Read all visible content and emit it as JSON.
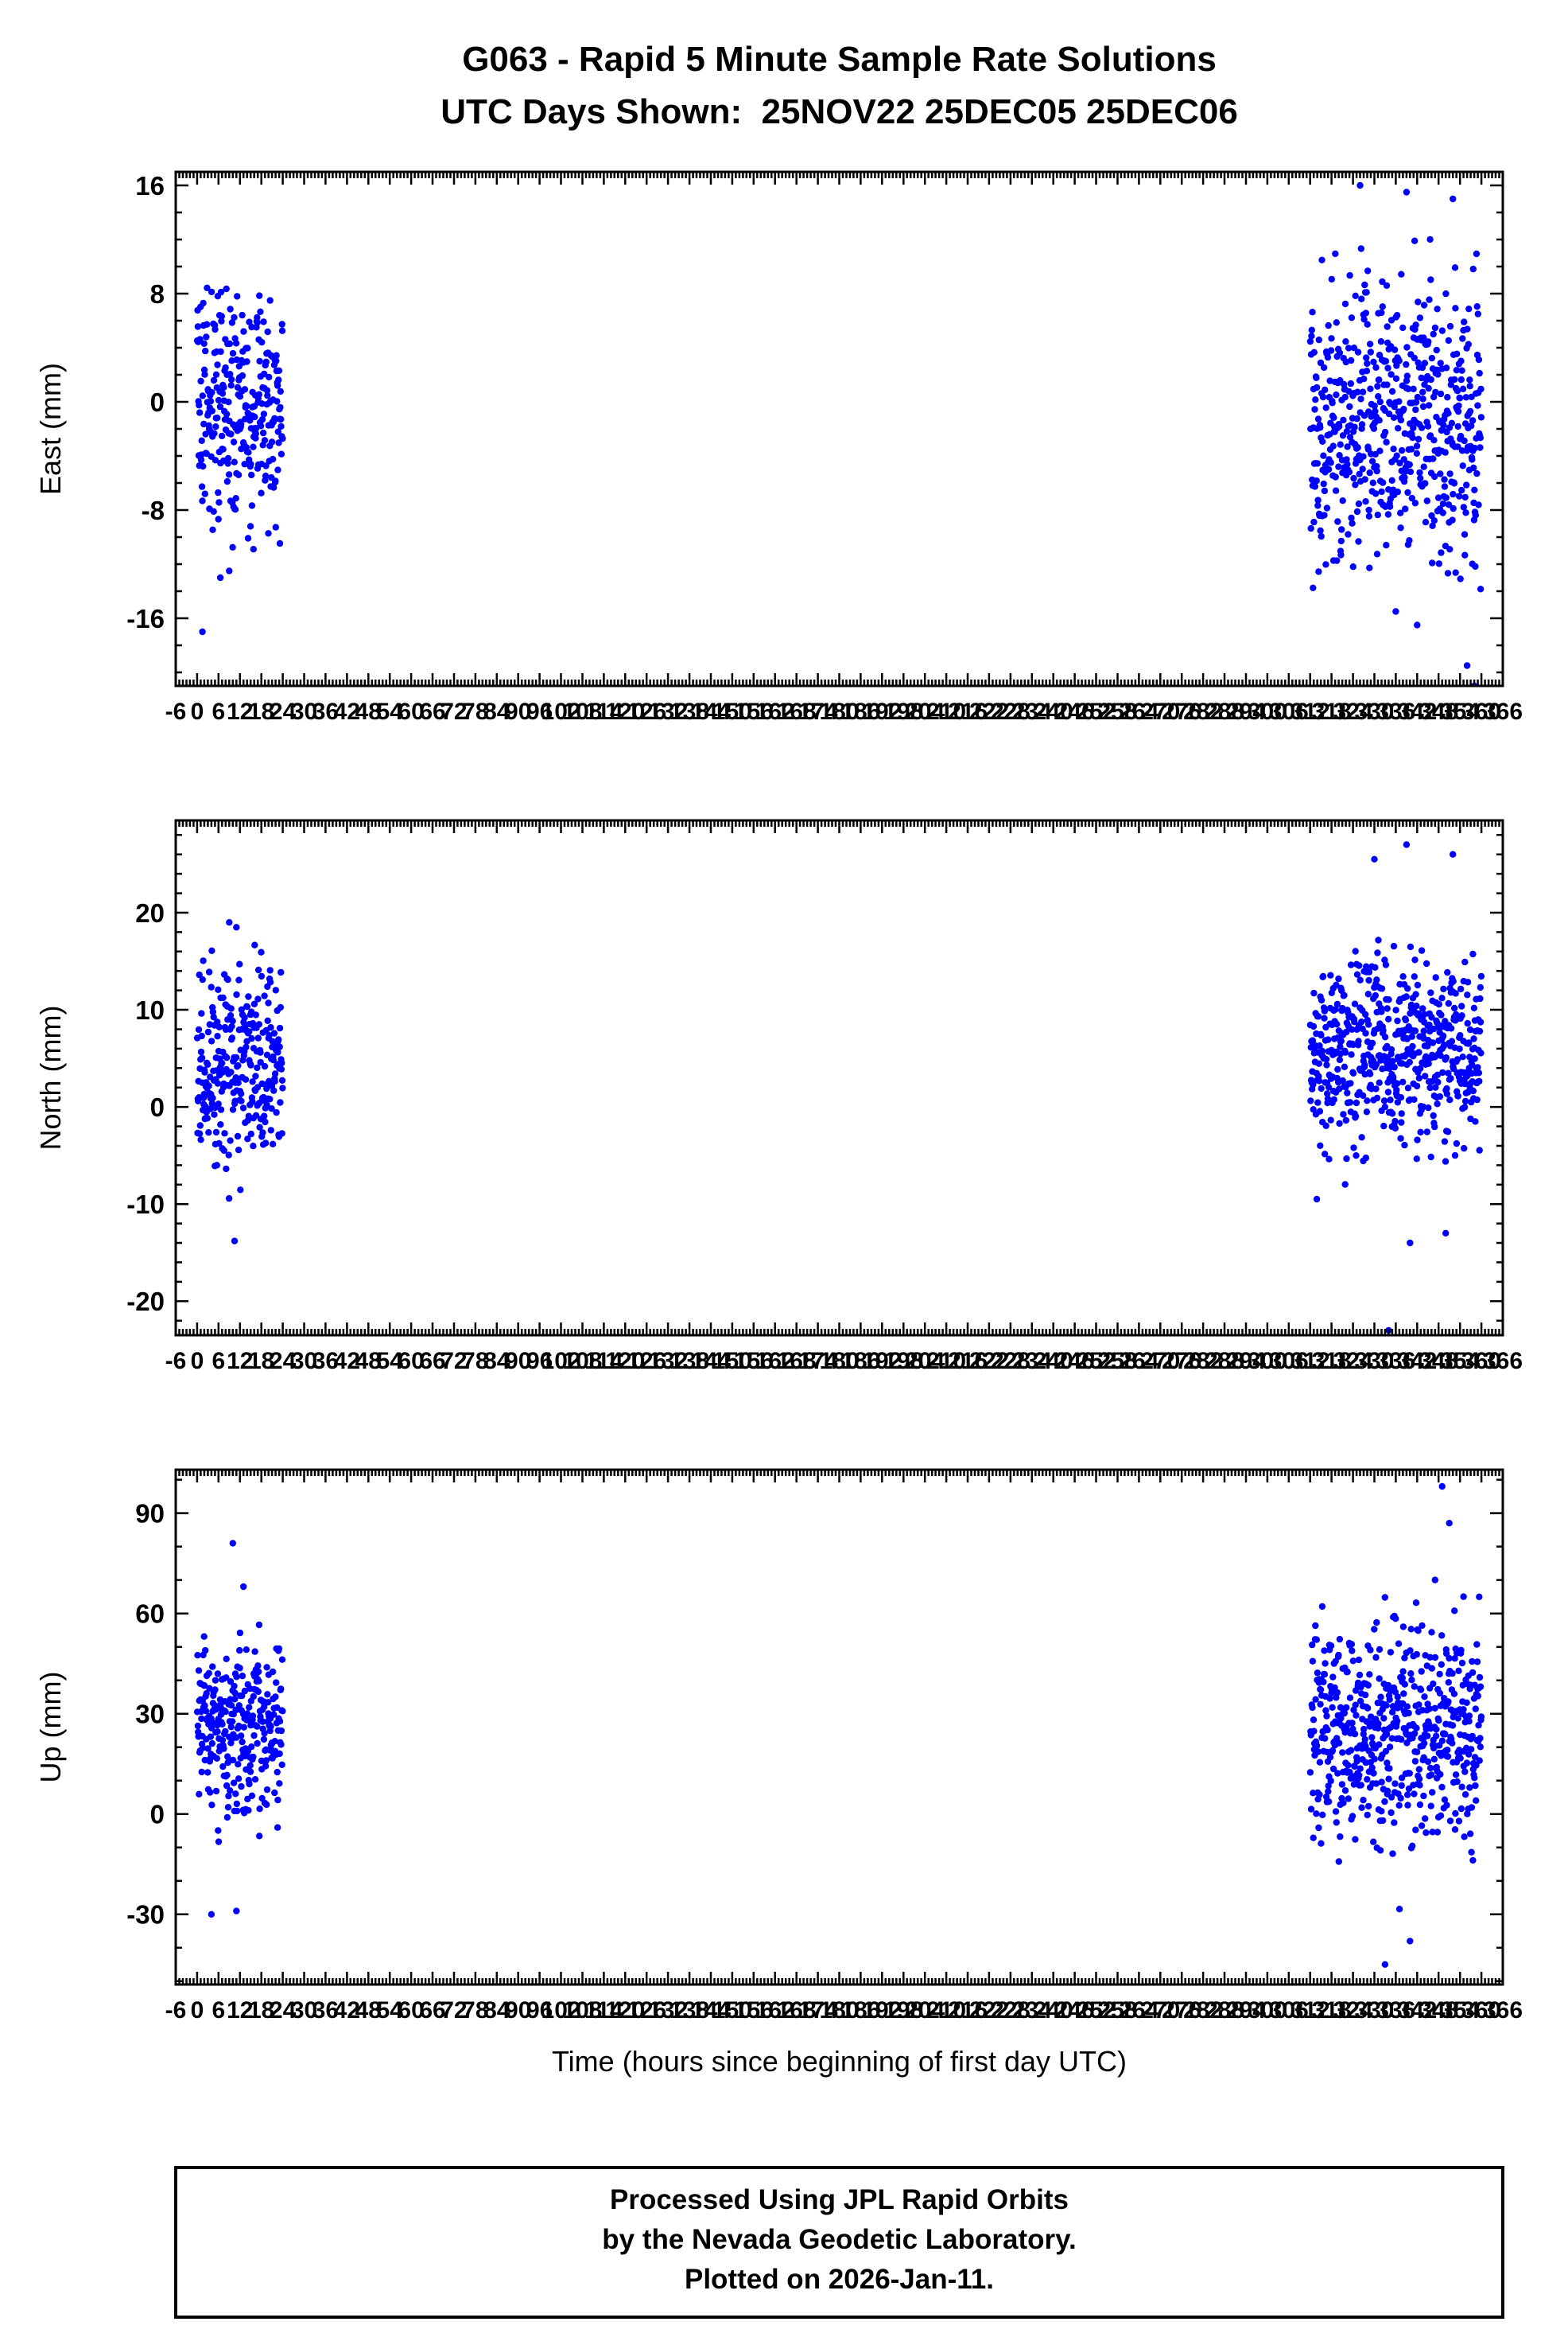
{
  "title": {
    "line1": "G063 - Rapid 5 Minute Sample Rate Solutions",
    "line2": "UTC Days Shown:  25NOV22 25DEC05 25DEC06"
  },
  "xaxis": {
    "label": "Time (hours since beginning of first day UTC)",
    "min": -6,
    "max": 366,
    "tick_step": 6,
    "minor_step": 1
  },
  "style": {
    "point_color": "#0000ff",
    "axis_color": "#000000"
  },
  "footer": {
    "line1": "Processed Using JPL Rapid Orbits",
    "line2": "by the Nevada Geodetic Laboratory.",
    "line3": "Plotted on 2026-Jan-11."
  },
  "chart_data": [
    {
      "type": "scatter",
      "ylabel": "East (mm)",
      "ylim": [
        -21,
        17
      ],
      "yticks": [
        16,
        8,
        0,
        -8,
        -16
      ],
      "y_minor_step": 2,
      "legend": "none",
      "grid": false,
      "clusters": [
        {
          "label": "25NOV22",
          "x_range": [
            0,
            24
          ],
          "count": 288,
          "y_mean": -0.5,
          "y_std": 4.2,
          "y_min": -13,
          "y_max": 8.5,
          "outliers": [
            [
              1.5,
              -17
            ],
            [
              6.5,
              -13
            ],
            [
              9,
              -12.5
            ]
          ]
        },
        {
          "label": "25DEC05 25DEC06",
          "x_range": [
            312,
            360
          ],
          "count": 576,
          "y_mean": -1.5,
          "y_std": 5.2,
          "y_min": -14,
          "y_max": 14.5,
          "outliers": [
            [
              326,
              16
            ],
            [
              339,
              15.5
            ],
            [
              352,
              15
            ],
            [
              342,
              -16.5
            ],
            [
              336,
              -15.5
            ],
            [
              356,
              -19.5
            ],
            [
              358,
              -21
            ]
          ]
        }
      ],
      "seed": 11
    },
    {
      "type": "scatter",
      "ylabel": "North (mm)",
      "ylim": [
        -23.5,
        29.5
      ],
      "yticks": [
        20,
        10,
        0,
        -10,
        -20
      ],
      "y_minor_step": 2,
      "legend": "none",
      "grid": false,
      "clusters": [
        {
          "label": "25NOV22",
          "x_range": [
            0,
            24
          ],
          "count": 288,
          "y_mean": 4,
          "y_std": 5,
          "y_min": -11.5,
          "y_max": 17,
          "outliers": [
            [
              9,
              19
            ],
            [
              11,
              18.5
            ],
            [
              10.5,
              -13.8
            ]
          ]
        },
        {
          "label": "25DEC05 25DEC06",
          "x_range": [
            312,
            360
          ],
          "count": 576,
          "y_mean": 5.5,
          "y_std": 5,
          "y_min": -10,
          "y_max": 18,
          "outliers": [
            [
              339,
              27
            ],
            [
              330,
              25.5
            ],
            [
              352,
              26
            ],
            [
              334,
              -23
            ],
            [
              340,
              -14
            ],
            [
              350,
              -13
            ]
          ]
        }
      ],
      "seed": 22
    },
    {
      "type": "scatter",
      "ylabel": "Up (mm)",
      "ylim": [
        -51,
        103
      ],
      "yticks": [
        90,
        60,
        30,
        0,
        -30
      ],
      "y_minor_step": 10,
      "legend": "none",
      "grid": false,
      "clusters": [
        {
          "label": "25NOV22",
          "x_range": [
            0,
            24
          ],
          "count": 288,
          "y_mean": 26,
          "y_std": 13,
          "y_min": -18,
          "y_max": 58,
          "outliers": [
            [
              10,
              81
            ],
            [
              13,
              68
            ],
            [
              4,
              -30
            ],
            [
              11,
              -29
            ]
          ]
        },
        {
          "label": "25DEC05 25DEC06",
          "x_range": [
            312,
            360
          ],
          "count": 576,
          "y_mean": 25,
          "y_std": 17,
          "y_min": -32,
          "y_max": 65,
          "outliers": [
            [
              349,
              98
            ],
            [
              351,
              87
            ],
            [
              347,
              70
            ],
            [
              355,
              65
            ],
            [
              340,
              -38
            ],
            [
              333,
              -45
            ]
          ]
        }
      ],
      "seed": 33
    }
  ]
}
